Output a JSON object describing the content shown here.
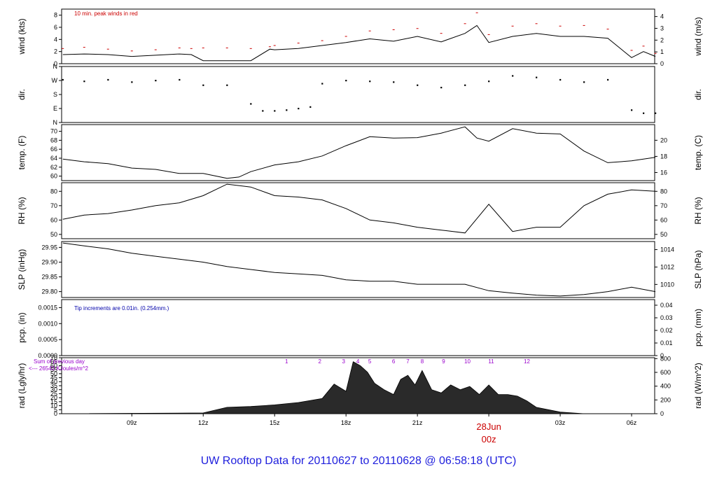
{
  "title": "UW Rooftop Data for 20110627  to  20110628 @ 06:58:18  (UTC)",
  "date_label": "28Jun",
  "date_sublabel": "00z",
  "annotations": {
    "wind_peak": "10 min. peak winds in red",
    "tip": "Tip increments are 0.01in. (0.254mm.)",
    "sum_prev": "Sum of previous day",
    "sum_value": "<--- 26543 KJoules/m^2"
  },
  "x_ticks": [
    "09z",
    "12z",
    "15z",
    "18z",
    "21z",
    "00z",
    "03z",
    "06z"
  ],
  "x_tick_hours": [
    9,
    12,
    15,
    18,
    21,
    24,
    27,
    30
  ],
  "x_range_hours": [
    6.05,
    30.97
  ],
  "hour_marks": [
    "1",
    "2",
    "3",
    "4",
    "5",
    "6",
    "7",
    "8",
    "9",
    "10",
    "11",
    "12"
  ],
  "hour_mark_hours": [
    15.5,
    16.9,
    17.9,
    18.5,
    19.0,
    20.0,
    20.6,
    21.2,
    22.1,
    23.1,
    24.1,
    25.6
  ],
  "colors": {
    "peak": "#cc0000",
    "title": "#2020dd",
    "note": "#0000aa",
    "rad_note": "#9900cc"
  },
  "chart_data": [
    {
      "name": "wind",
      "type": "line",
      "ylabel": "wind (kts)",
      "ylabel_right": "wind (m/s)",
      "ylim": [
        0,
        9
      ],
      "yticks": [
        0,
        2,
        4,
        6,
        8
      ],
      "right_ylim": [
        0,
        4.63
      ],
      "right_yticks": [
        0,
        1,
        2,
        3,
        4
      ],
      "x": [
        6.1,
        7,
        8,
        9,
        10,
        11,
        11.5,
        12,
        13,
        14,
        14.8,
        15,
        16,
        17,
        18,
        19,
        20,
        21,
        22,
        23,
        23.5,
        24,
        25,
        26,
        27,
        28,
        29,
        30,
        30.5,
        31
      ],
      "y": [
        1.5,
        1.6,
        1.5,
        1.2,
        1.4,
        1.6,
        1.5,
        0.5,
        0.5,
        0.5,
        2.4,
        2.3,
        2.5,
        3.0,
        3.5,
        4.1,
        3.7,
        4.5,
        3.6,
        5.0,
        6.3,
        3.5,
        4.5,
        5.0,
        4.5,
        4.5,
        4.2,
        1.0,
        2.0,
        1.2
      ],
      "peak_y": [
        2.5,
        2.7,
        2.4,
        2.1,
        2.3,
        2.6,
        2.5,
        2.6,
        2.6,
        2.5,
        2.8,
        3.0,
        3.4,
        3.8,
        4.5,
        5.4,
        5.6,
        5.8,
        5.0,
        6.6,
        8.4,
        4.8,
        6.2,
        6.6,
        6.2,
        6.3,
        5.7,
        2.2,
        2.9,
        1.7
      ]
    },
    {
      "name": "dir",
      "type": "scatter",
      "ylabel": "dir.",
      "ylabel_right": "dir.",
      "ylim": [
        0,
        360
      ],
      "yticks": [
        0,
        90,
        180,
        270,
        360
      ],
      "ytick_labels": [
        "N",
        "E",
        "S",
        "W",
        "N"
      ],
      "x": [
        6.1,
        7,
        8,
        9,
        10,
        11,
        12,
        13,
        14,
        14.5,
        15,
        15.5,
        16,
        16.5,
        17,
        18,
        19,
        20,
        21,
        22,
        23,
        24,
        25,
        26,
        27,
        28,
        29,
        30,
        30.5,
        31
      ],
      "y": [
        275,
        265,
        275,
        260,
        270,
        275,
        240,
        240,
        120,
        75,
        75,
        80,
        90,
        100,
        250,
        270,
        265,
        260,
        240,
        225,
        240,
        265,
        300,
        290,
        275,
        260,
        275,
        80,
        60,
        60
      ]
    },
    {
      "name": "temp",
      "type": "line",
      "ylabel": "temp. (F)",
      "ylabel_right": "temp. (C)",
      "ylim": [
        59,
        71.5
      ],
      "yticks": [
        60,
        62,
        64,
        66,
        68,
        70
      ],
      "right_ylim": [
        15,
        21.94
      ],
      "right_yticks": [
        16,
        18,
        20
      ],
      "x": [
        6.1,
        7,
        8,
        9,
        10,
        11,
        12,
        13,
        13.5,
        14,
        15,
        16,
        17,
        18,
        19,
        20,
        21,
        22,
        23,
        23.5,
        24,
        25,
        26,
        27,
        28,
        29,
        30,
        31
      ],
      "y": [
        63.8,
        63.2,
        62.8,
        61.8,
        61.5,
        60.6,
        60.6,
        59.5,
        59.8,
        61.0,
        62.5,
        63.2,
        64.5,
        66.8,
        68.8,
        68.5,
        68.6,
        69.6,
        71.0,
        68.5,
        67.8,
        70.6,
        69.6,
        69.4,
        65.6,
        63.0,
        63.4,
        64.2
      ]
    },
    {
      "name": "rh",
      "type": "line",
      "ylabel": "RH (%)",
      "ylabel_right": "RH (%)",
      "ylim": [
        47,
        86
      ],
      "yticks": [
        50,
        60,
        70,
        80
      ],
      "right_ylim": [
        47,
        86
      ],
      "right_yticks": [
        50,
        60,
        70,
        80
      ],
      "x": [
        6.1,
        7,
        8,
        9,
        10,
        11,
        12,
        13,
        13.5,
        14,
        15,
        16,
        17,
        18,
        19,
        20,
        21,
        22,
        23,
        23.5,
        24,
        25,
        26,
        27,
        28,
        29,
        30,
        31
      ],
      "y": [
        60.5,
        63.5,
        64.5,
        67,
        70,
        72,
        77,
        85,
        84,
        83,
        77,
        76,
        74,
        68,
        60,
        58,
        55,
        53,
        51,
        61,
        71,
        52,
        55,
        55,
        70,
        78,
        81,
        80
      ]
    },
    {
      "name": "slp",
      "type": "line",
      "ylabel": "SLP (inHg)",
      "ylabel_right": "SLP (hPa)",
      "ylim": [
        29.78,
        29.97
      ],
      "yticks": [
        29.8,
        29.85,
        29.9,
        29.95
      ],
      "ytick_labels": [
        "29.80",
        "29.85",
        "29.90",
        "29.95"
      ],
      "right_ylim": [
        1008.5,
        1014.93
      ],
      "right_yticks": [
        1008,
        1010,
        1012,
        1014
      ],
      "x": [
        6.1,
        7,
        8,
        9,
        10,
        11,
        12,
        13,
        14,
        15,
        16,
        17,
        18,
        19,
        20,
        21,
        22,
        23,
        24,
        25,
        26,
        27,
        28,
        29,
        30,
        31
      ],
      "y": [
        29.965,
        29.955,
        29.945,
        29.93,
        29.92,
        29.91,
        29.9,
        29.885,
        29.875,
        29.865,
        29.86,
        29.855,
        29.84,
        29.835,
        29.835,
        29.825,
        29.825,
        29.825,
        29.803,
        29.795,
        29.788,
        29.785,
        29.79,
        29.8,
        29.815,
        29.8
      ]
    },
    {
      "name": "pcp",
      "type": "line",
      "ylabel": "pcp. (in)",
      "ylabel_right": "pcp. (mm)",
      "ylim": [
        0,
        0.00175
      ],
      "yticks": [
        0,
        0.0005,
        0.001,
        0.0015
      ],
      "ytick_labels": [
        "0.0000",
        "0.0005",
        "0.0010",
        "0.0015"
      ],
      "right_ylim": [
        0,
        0.04445
      ],
      "right_yticks": [
        0,
        0.01,
        0.02,
        0.03,
        0.04
      ],
      "right_ytick_labels": [
        "0",
        "0.01",
        "0.02",
        "0.03",
        "0.04"
      ],
      "x": [
        6.1,
        31
      ],
      "y": [
        0,
        0
      ]
    },
    {
      "name": "rad",
      "type": "area",
      "ylabel": "rad (Lgly/hr)",
      "ylabel_right": "rad (W/m^2)",
      "ylim": [
        0,
        70
      ],
      "yticks": [
        0,
        5,
        10,
        15,
        20,
        25,
        30,
        35,
        40,
        45,
        50,
        55,
        60,
        65,
        70
      ],
      "right_ylim": [
        0,
        813
      ],
      "right_yticks": [
        0,
        200,
        400,
        600,
        800
      ],
      "x": [
        6.1,
        12,
        13,
        14,
        15,
        16,
        17,
        17.5,
        18,
        18.3,
        18.6,
        18.9,
        19.2,
        19.6,
        20,
        20.3,
        20.6,
        20.9,
        21.2,
        21.6,
        22,
        22.4,
        22.8,
        23.2,
        23.6,
        24,
        24.4,
        24.8,
        25.2,
        25.6,
        26,
        26.5,
        27,
        28,
        31
      ],
      "y": [
        0,
        1,
        8,
        9,
        11,
        14,
        19,
        37,
        28,
        65,
        60,
        52,
        38,
        30,
        24,
        43,
        48,
        36,
        54,
        30,
        26,
        36,
        30,
        34,
        24,
        36,
        24,
        24,
        22,
        16,
        8,
        5,
        2,
        0,
        0
      ]
    }
  ]
}
